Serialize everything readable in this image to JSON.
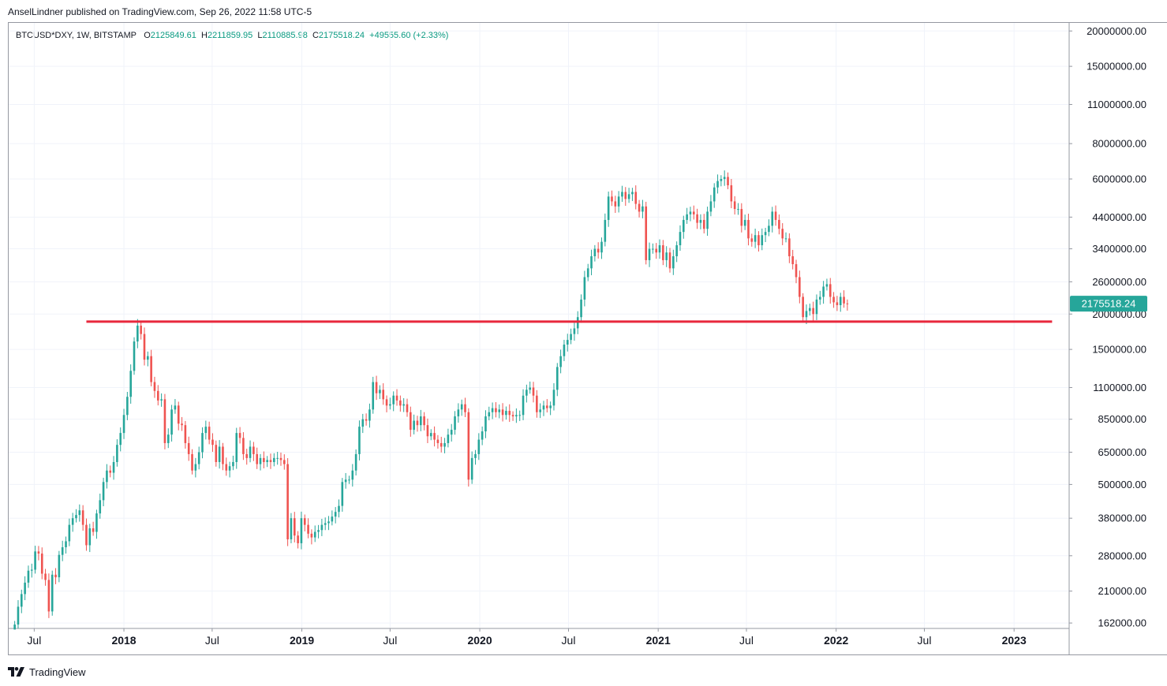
{
  "publisher_line": "AnselLindner published on TradingView.com, Sep 26, 2022 11:58 UTC-5",
  "header": {
    "symbol": "BTCUSD*DXY, 1W, BITSTAMP",
    "open_label": "O",
    "open": "2125849.61",
    "high_label": "H",
    "high": "2211859.95",
    "low_label": "L",
    "low": "2110885.98",
    "close_label": "C",
    "close": "2175518.24",
    "change": "+49555.60 (+2.33%)"
  },
  "last_price_label": "2175518.24",
  "footer": {
    "brand": "TradingView",
    "logo_icon": "tradingview-logo-icon"
  },
  "colors": {
    "up": "#26a69a",
    "down": "#ef5350",
    "support_line": "#e8283c",
    "last_price_bg": "#26a69a"
  },
  "chart_data": {
    "type": "candlestick",
    "title": "",
    "scale": "log",
    "ylim": [
      155000,
      21500000
    ],
    "y_ticks": [
      "20000000.00",
      "15000000.00",
      "11000000.00",
      "8000000.00",
      "6000000.00",
      "4400000.00",
      "3400000.00",
      "2600000.00",
      "2000000.00",
      "1500000.00",
      "1100000.00",
      "850000.00",
      "650000.00",
      "500000.00",
      "380000.00",
      "280000.00",
      "210000.00",
      "162000.00"
    ],
    "x_ticks": [
      {
        "date": "2017-07-01",
        "label": "Jul",
        "bold": false
      },
      {
        "date": "2018-01-01",
        "label": "2018",
        "bold": true
      },
      {
        "date": "2018-07-01",
        "label": "Jul",
        "bold": false
      },
      {
        "date": "2019-01-01",
        "label": "2019",
        "bold": true
      },
      {
        "date": "2019-07-01",
        "label": "Jul",
        "bold": false
      },
      {
        "date": "2020-01-01",
        "label": "2020",
        "bold": true
      },
      {
        "date": "2020-07-01",
        "label": "Jul",
        "bold": false
      },
      {
        "date": "2021-01-01",
        "label": "2021",
        "bold": true
      },
      {
        "date": "2021-07-01",
        "label": "Jul",
        "bold": false
      },
      {
        "date": "2022-01-01",
        "label": "2022",
        "bold": true
      },
      {
        "date": "2022-07-01",
        "label": "Jul",
        "bold": false
      },
      {
        "date": "2023-01-01",
        "label": "2023",
        "bold": true
      }
    ],
    "x_range": [
      "2017-05-08",
      "2023-04-24"
    ],
    "first_week": "2017-05-22",
    "last_close": 2175518.24,
    "support_line": {
      "value": 1880000,
      "from": "2017-10-16",
      "to": "2023-03-20"
    },
    "weekly_closes": [
      160000,
      185000,
      205000,
      225000,
      248000,
      250000,
      290000,
      285000,
      242000,
      230000,
      178000,
      240000,
      235000,
      282000,
      300000,
      315000,
      360000,
      380000,
      390000,
      405000,
      360000,
      305000,
      350000,
      340000,
      395000,
      440000,
      510000,
      560000,
      550000,
      600000,
      690000,
      760000,
      880000,
      1020000,
      1260000,
      1600000,
      1820000,
      1700000,
      1380000,
      1420000,
      1150000,
      1070000,
      990000,
      1000000,
      700000,
      750000,
      920000,
      950000,
      820000,
      810000,
      700000,
      640000,
      560000,
      590000,
      650000,
      760000,
      800000,
      720000,
      690000,
      600000,
      680000,
      590000,
      560000,
      580000,
      600000,
      760000,
      730000,
      640000,
      620000,
      680000,
      640000,
      590000,
      620000,
      600000,
      610000,
      600000,
      620000,
      620000,
      610000,
      590000,
      320000,
      380000,
      330000,
      310000,
      380000,
      360000,
      335000,
      325000,
      340000,
      345000,
      360000,
      365000,
      370000,
      385000,
      400000,
      420000,
      510000,
      520000,
      520000,
      560000,
      640000,
      800000,
      850000,
      840000,
      920000,
      1150000,
      1050000,
      1080000,
      1000000,
      950000,
      960000,
      1030000,
      990000,
      950000,
      960000,
      900000,
      780000,
      840000,
      810000,
      870000,
      810000,
      740000,
      760000,
      720000,
      700000,
      680000,
      700000,
      750000,
      780000,
      870000,
      920000,
      960000,
      900000,
      520000,
      620000,
      640000,
      720000,
      770000,
      870000,
      900000,
      930000,
      900000,
      920000,
      880000,
      910000,
      880000,
      870000,
      880000,
      880000,
      1030000,
      1080000,
      1100000,
      1030000,
      900000,
      920000,
      950000,
      930000,
      950000,
      1080000,
      1300000,
      1420000,
      1560000,
      1620000,
      1700000,
      1780000,
      1950000,
      2250000,
      2700000,
      2900000,
      3200000,
      3400000,
      3300000,
      3600000,
      4300000,
      5200000,
      5000000,
      4800000,
      5200000,
      5400000,
      5100000,
      5300000,
      5400000,
      4900000,
      4600000,
      4800000,
      3100000,
      3400000,
      3400000,
      3300000,
      3500000,
      3100000,
      3300000,
      2900000,
      3200000,
      3500000,
      3900000,
      4300000,
      4500000,
      4600000,
      4500000,
      4200000,
      4300000,
      4000000,
      4600000,
      5000000,
      5600000,
      5900000,
      6000000,
      6100000,
      5700000,
      5000000,
      4700000,
      4700000,
      4100000,
      4300000,
      3700000,
      3600000,
      3800000,
      3500000,
      3800000,
      3900000,
      4100000,
      4600000,
      4300000,
      4000000,
      3700000,
      3700000,
      3200000,
      3000000,
      2700000,
      2300000,
      1950000,
      2050000,
      2100000,
      2000000,
      2250000,
      2300000,
      2500000,
      2550000,
      2300000,
      2200000,
      2150000,
      2300000,
      2180000,
      2175518
    ]
  }
}
